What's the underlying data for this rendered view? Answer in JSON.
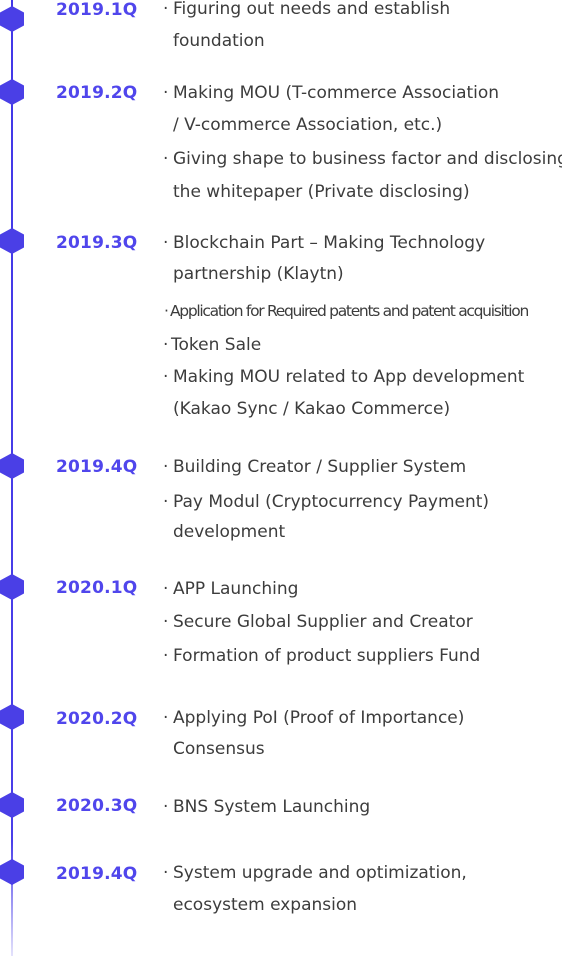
{
  "bullet": "·",
  "milestones": [
    {
      "quarter": "2019.1Q",
      "items": [
        {
          "lines": [
            "Figuring out needs and establish",
            "foundation"
          ]
        }
      ]
    },
    {
      "quarter": "2019.2Q",
      "items": [
        {
          "lines": [
            "Making MOU (T-commerce Association",
            "/ V-commerce Association, etc.)"
          ]
        },
        {
          "lines": [
            "Giving shape to business factor and disclosing",
            "the whitepaper (Private disclosing)"
          ]
        }
      ]
    },
    {
      "quarter": "2019.3Q",
      "items": [
        {
          "lines": [
            "Blockchain Part – Making Technology",
            "partnership (Klaytn)"
          ]
        },
        {
          "lines": [
            "Application for Required patents and patent acquisition"
          ]
        },
        {
          "lines": [
            "Token Sale"
          ]
        },
        {
          "lines": [
            "Making MOU related to App development",
            "(Kakao Sync / Kakao Commerce)"
          ]
        }
      ]
    },
    {
      "quarter": "2019.4Q",
      "items": [
        {
          "lines": [
            "Building Creator / Supplier System"
          ]
        },
        {
          "lines": [
            "Pay Modul (Cryptocurrency Payment)",
            "development"
          ]
        }
      ]
    },
    {
      "quarter": "2020.1Q",
      "items": [
        {
          "lines": [
            "APP Launching"
          ]
        },
        {
          "lines": [
            "Secure Global Supplier and Creator"
          ]
        },
        {
          "lines": [
            "Formation of product suppliers Fund"
          ]
        }
      ]
    },
    {
      "quarter": "2020.2Q",
      "items": [
        {
          "lines": [
            "Applying PoI (Proof of Importance)",
            "Consensus"
          ]
        }
      ]
    },
    {
      "quarter": "2020.3Q",
      "items": [
        {
          "lines": [
            "BNS System Launching"
          ]
        }
      ]
    },
    {
      "quarter": "2019.4Q",
      "items": [
        {
          "lines": [
            "System upgrade and optimization,",
            "ecosystem expansion"
          ]
        }
      ]
    }
  ]
}
